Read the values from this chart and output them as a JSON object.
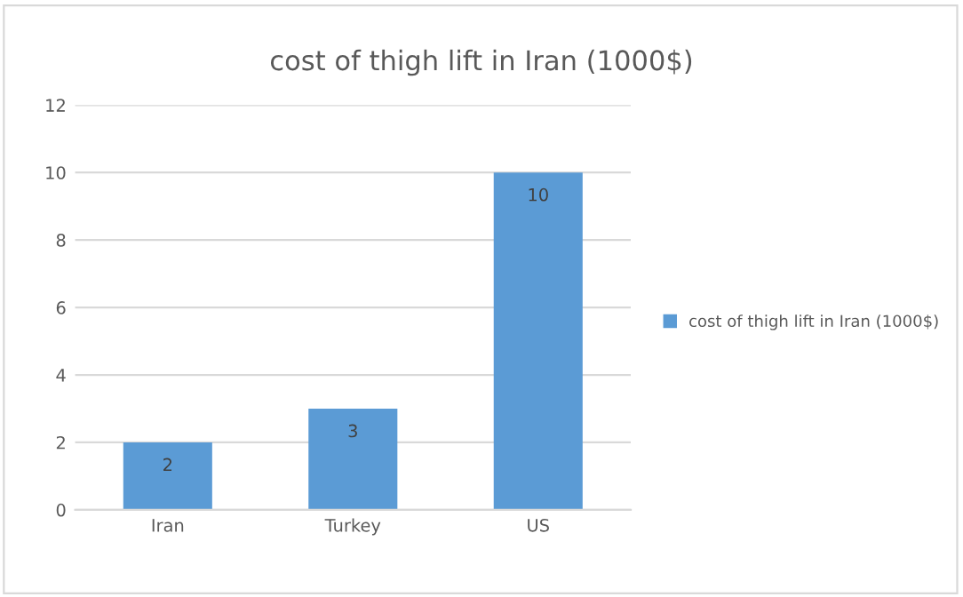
{
  "chart_data": {
    "type": "bar",
    "title": "cost of thigh lift in Iran (1000$)",
    "categories": [
      "Iran",
      "Turkey",
      "US"
    ],
    "series": [
      {
        "name": "cost of thigh lift in Iran (1000$)",
        "color": "#5b9bd5",
        "values": [
          2,
          3,
          10
        ]
      }
    ],
    "ylim": [
      0,
      12
    ],
    "yticks": [
      0,
      2,
      4,
      6,
      8,
      10,
      12
    ],
    "grid": "y",
    "legend": "right",
    "data_labels": true
  }
}
